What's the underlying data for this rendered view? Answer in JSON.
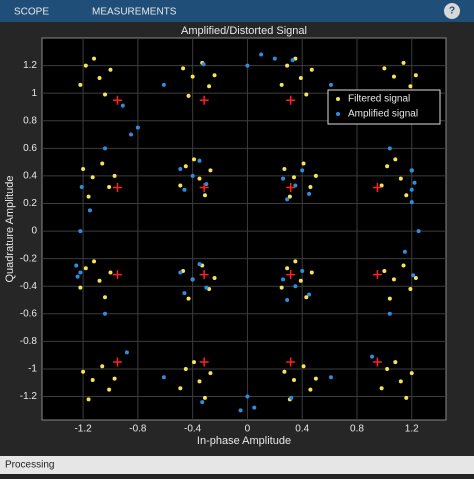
{
  "toolbar": {
    "tabs": [
      "SCOPE",
      "MEASUREMENTS"
    ]
  },
  "status_bar": "Processing",
  "chart_data": {
    "type": "scatter",
    "title": "Amplified/Distorted Signal",
    "x_label": "In-phase Amplitude",
    "y_label": "Quadrature Amplitude",
    "xlim": [
      -1.5,
      1.45
    ],
    "ylim": [
      -1.37,
      1.4
    ],
    "xticks": [
      -1.2,
      -0.8,
      -0.4,
      0,
      0.4,
      0.8,
      1.2
    ],
    "yticks": [
      -1.2,
      -1,
      -0.8,
      -0.6,
      -0.4,
      -0.2,
      0,
      0.2,
      0.4,
      0.6,
      0.8,
      1,
      1.2
    ],
    "grid": true,
    "legend": "northeast",
    "series": [
      {
        "name": "Filtered signal",
        "color": "#f5e35a",
        "x": [
          -1.08,
          -1,
          -1.18,
          -1.04,
          -1.22,
          -1.12,
          -0.4,
          -0.28,
          -0.47,
          -0.33,
          -0.43,
          -0.24,
          0.39,
          0.47,
          0.29,
          0.43,
          0.25,
          0.35,
          1.07,
          1.19,
          1,
          1.14,
          1.04,
          1.23,
          -1.13,
          -1.01,
          -1.2,
          -1.06,
          -1.16,
          -0.97,
          -0.35,
          -0.27,
          -0.45,
          -0.31,
          -0.49,
          -0.39,
          0.34,
          0.46,
          0.27,
          0.41,
          0.31,
          0.5,
          1.12,
          1.2,
          1.02,
          1.16,
          0.98,
          1.08,
          -1.08,
          -1,
          -1.18,
          -1.04,
          -1.22,
          -1.12,
          -0.4,
          -0.28,
          -0.47,
          -0.33,
          -0.43,
          -0.24,
          0.39,
          0.47,
          0.29,
          0.43,
          0.25,
          0.35,
          1.07,
          1.19,
          1,
          1.14,
          1.04,
          1.23,
          -1.13,
          -1.01,
          -1.2,
          -1.06,
          -1.16,
          -0.97,
          -0.35,
          -0.27,
          -0.45,
          -0.31,
          -0.49,
          -0.39,
          0.34,
          0.46,
          0.27,
          0.41,
          0.31,
          0.5,
          1.12,
          1.2,
          1.02,
          1.16,
          0.98,
          1.08
        ],
        "y": [
          1.11,
          1.17,
          1.2,
          0.99,
          1.06,
          1.25,
          1.12,
          1.05,
          1.18,
          1.22,
          0.98,
          1.13,
          1.11,
          1.17,
          1.2,
          0.99,
          1.06,
          1.25,
          1.12,
          1.05,
          1.18,
          1.22,
          0.98,
          1.13,
          0.39,
          0.32,
          0.45,
          0.49,
          0.25,
          0.4,
          0.38,
          0.44,
          0.47,
          0.26,
          0.33,
          0.52,
          0.39,
          0.32,
          0.45,
          0.49,
          0.25,
          0.4,
          0.38,
          0.44,
          0.47,
          0.26,
          0.33,
          0.52,
          -0.36,
          -0.3,
          -0.27,
          -0.48,
          -0.41,
          -0.22,
          -0.35,
          -0.42,
          -0.29,
          -0.25,
          -0.49,
          -0.34,
          -0.36,
          -0.3,
          -0.27,
          -0.48,
          -0.41,
          -0.22,
          -0.35,
          -0.42,
          -0.29,
          -0.25,
          -0.49,
          -0.34,
          -1.08,
          -1.15,
          -1.02,
          -0.98,
          -1.22,
          -1.07,
          -1.09,
          -1.03,
          -1,
          -1.21,
          -1.14,
          -0.95,
          -1.08,
          -1.15,
          -1.02,
          -0.98,
          -1.22,
          -1.07,
          -1.09,
          -1.03,
          -1,
          -1.21,
          -1.14,
          -0.95
        ]
      },
      {
        "name": "Amplified signal",
        "color": "#2f8de0",
        "x": [
          -0.4,
          -0.3,
          -0.49,
          -0.35,
          -0.46,
          0.35,
          0.45,
          0.26,
          0.4,
          0.29,
          -0.4,
          -0.3,
          -0.49,
          -0.35,
          -0.46,
          0.35,
          0.45,
          0.26,
          0.4,
          0.29,
          1.25,
          1.2,
          1.2,
          1.04,
          0.88,
          0.61,
          0.33,
          0,
          -0.32,
          -0.61,
          -0.91,
          -1.04,
          -1.21,
          -1.22,
          -1.24,
          -1.04,
          -0.88,
          -0.61,
          -0.33,
          0,
          0.32,
          0.61,
          0.91,
          1.04,
          1.21,
          1.2,
          1.22,
          -1.25,
          -1.22,
          -0.85,
          -0.8,
          0.1,
          0.2,
          -0.05,
          0.05,
          1.15,
          -1.15
        ],
        "y": [
          0.4,
          0.34,
          0.45,
          0.51,
          0.3,
          0.33,
          0.27,
          0.38,
          0.44,
          0.23,
          -0.35,
          -0.41,
          -0.3,
          -0.24,
          -0.45,
          -0.4,
          -0.46,
          -0.35,
          -0.29,
          -0.5,
          0,
          0.21,
          0.44,
          0.6,
          0.88,
          1.06,
          1.24,
          1.2,
          1.21,
          1.06,
          0.91,
          0.6,
          0.32,
          0,
          -0.33,
          -0.6,
          -0.88,
          -1.06,
          -1.24,
          -1.2,
          -1.21,
          -1.06,
          -0.91,
          -0.6,
          -0.32,
          0.3,
          0.35,
          -0.25,
          -0.3,
          0.7,
          0.75,
          1.28,
          1.25,
          -1.3,
          -1.28,
          -0.15,
          0.15
        ]
      }
    ],
    "reference": {
      "color": "#ff2020",
      "x": [
        -0.949,
        -0.316,
        0.316,
        0.949,
        -0.949,
        -0.316,
        0.316,
        0.949,
        -0.949,
        -0.316,
        0.316,
        0.949,
        -0.949,
        -0.316,
        0.316,
        0.949
      ],
      "y": [
        0.949,
        0.949,
        0.949,
        0.949,
        0.316,
        0.316,
        0.316,
        0.316,
        -0.316,
        -0.316,
        -0.316,
        -0.316,
        -0.949,
        -0.949,
        -0.949,
        -0.949
      ]
    }
  }
}
